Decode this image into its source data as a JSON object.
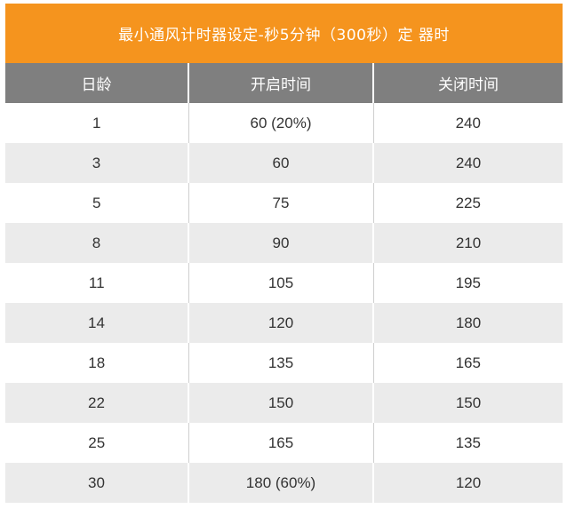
{
  "title": "最小通风计时器设定-秒5分钟（300秒）定 器时",
  "headers": [
    "日龄",
    "开启时间",
    "关闭时间"
  ],
  "rows": [
    [
      "1",
      "60 (20%)",
      "240"
    ],
    [
      "3",
      "60",
      "240"
    ],
    [
      "5",
      "75",
      "225"
    ],
    [
      "8",
      "90",
      "210"
    ],
    [
      "11",
      "105",
      "195"
    ],
    [
      "14",
      "120",
      "180"
    ],
    [
      "18",
      "135",
      "165"
    ],
    [
      "22",
      "150",
      "150"
    ],
    [
      "25",
      "165",
      "135"
    ],
    [
      "30",
      "180 (60%)",
      "120"
    ]
  ],
  "colors": {
    "title_background": "#f5941e",
    "header_background": "#7f7f7f",
    "row_alt_background": "#ebebeb"
  }
}
